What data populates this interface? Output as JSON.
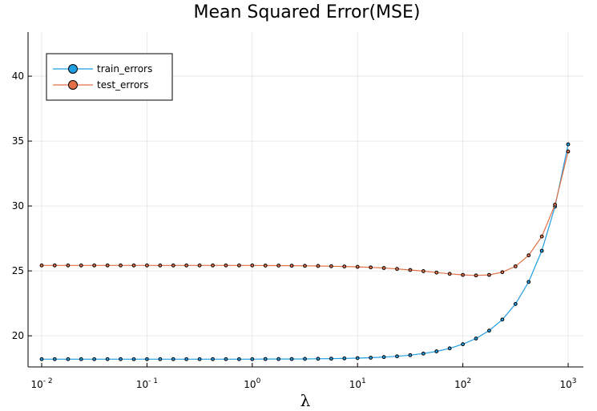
{
  "chart_data": {
    "type": "line",
    "title": "Mean Squared Error(MSE)",
    "xlabel": "λ",
    "ylabel": "",
    "x_scale": "log10",
    "xlim": [
      0.01,
      1000
    ],
    "ylim": [
      17.6,
      43.4
    ],
    "grid": true,
    "legend_position": "top-left",
    "x_ticks": [
      {
        "value": 0.01,
        "base": "10",
        "exp": "- 2"
      },
      {
        "value": 0.1,
        "base": "10",
        "exp": "- 1"
      },
      {
        "value": 1,
        "base": "10",
        "exp": "0"
      },
      {
        "value": 10,
        "base": "10",
        "exp": "1"
      },
      {
        "value": 100,
        "base": "10",
        "exp": "2"
      },
      {
        "value": 1000,
        "base": "10",
        "exp": "3"
      }
    ],
    "y_ticks": [
      20,
      25,
      30,
      35,
      40
    ],
    "x": [
      0.01,
      0.0133,
      0.0178,
      0.0237,
      0.0316,
      0.0422,
      0.0562,
      0.075,
      0.1,
      0.1334,
      0.1778,
      0.2371,
      0.3162,
      0.4217,
      0.5623,
      0.7499,
      1,
      1.3335,
      1.7783,
      2.3714,
      3.1623,
      4.217,
      5.6234,
      7.4989,
      10,
      13.3352,
      17.7828,
      23.7137,
      31.6228,
      42.1697,
      56.2341,
      74.9894,
      100,
      133.3521,
      177.8279,
      237.1374,
      316.2278,
      421.6965,
      562.3413,
      749.8942,
      1000
    ],
    "series": [
      {
        "name": "train_errors",
        "color": "#1f9ee3",
        "values": [
          18.2,
          18.2,
          18.2,
          18.2,
          18.2,
          18.2,
          18.2,
          18.2,
          18.2,
          18.2,
          18.2,
          18.2,
          18.2,
          18.2,
          18.2,
          18.2,
          18.2,
          18.21,
          18.21,
          18.21,
          18.22,
          18.23,
          18.24,
          18.26,
          18.28,
          18.31,
          18.36,
          18.42,
          18.51,
          18.63,
          18.8,
          19.03,
          19.35,
          19.79,
          20.4,
          21.25,
          22.45,
          24.15,
          26.55,
          29.95,
          34.75
        ]
      },
      {
        "name": "test_errors",
        "color": "#e26f46",
        "values": [
          25.42,
          25.42,
          25.42,
          25.42,
          25.42,
          25.42,
          25.42,
          25.42,
          25.42,
          25.42,
          25.42,
          25.42,
          25.42,
          25.42,
          25.42,
          25.42,
          25.42,
          25.41,
          25.41,
          25.4,
          25.39,
          25.38,
          25.36,
          25.34,
          25.31,
          25.27,
          25.22,
          25.15,
          25.07,
          24.98,
          24.87,
          24.77,
          24.69,
          24.65,
          24.69,
          24.9,
          25.35,
          26.2,
          27.65,
          30.1,
          34.2
        ]
      }
    ]
  }
}
